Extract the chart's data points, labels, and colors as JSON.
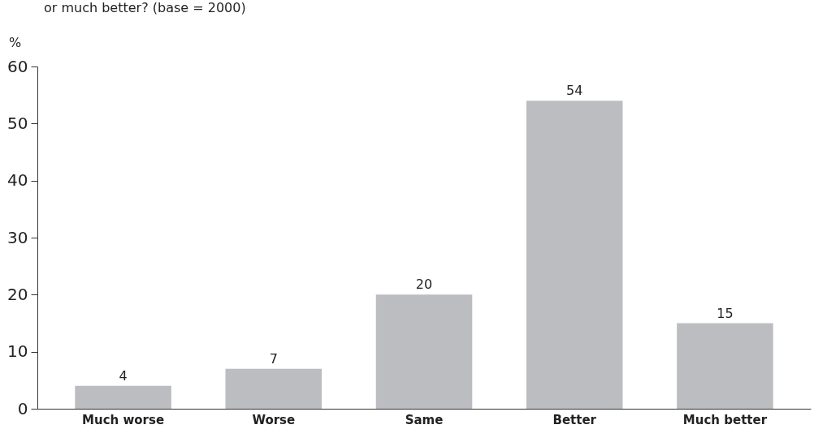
{
  "chart_data": {
    "type": "bar",
    "title": "or much better? (base = 2000)",
    "ylabel": "%",
    "categories": [
      "Much worse",
      "Worse",
      "Same",
      "Better",
      "Much better"
    ],
    "values": [
      4,
      7,
      20,
      54,
      15
    ],
    "color": "#bcbdc1",
    "ylim": [
      0,
      60
    ],
    "yticks": [
      0,
      10,
      20,
      30,
      40,
      50,
      60
    ],
    "data_labels": true,
    "grid": false
  }
}
